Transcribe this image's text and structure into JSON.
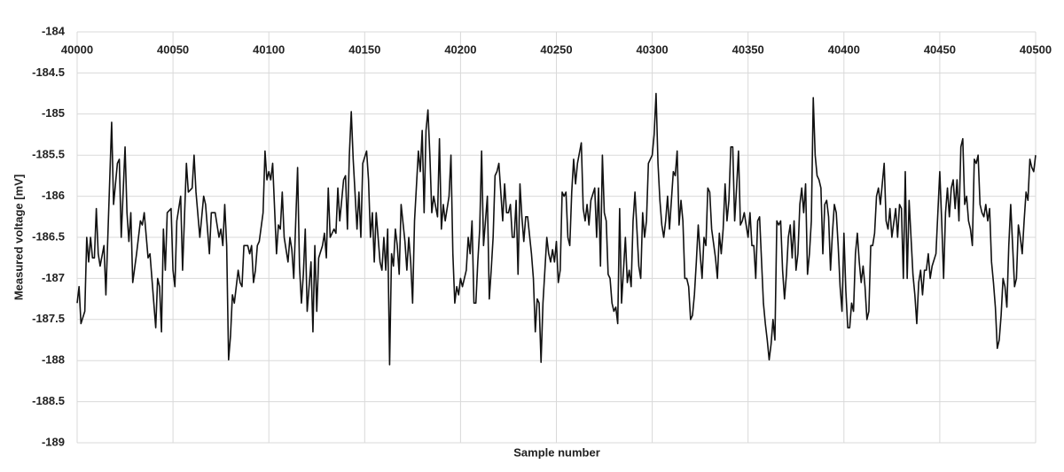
{
  "chart_data": {
    "type": "line",
    "xlabel": "Sample number",
    "ylabel": "Measured voltage [mV]",
    "color": "#111111",
    "grid": true,
    "xlim": [
      40000,
      40500
    ],
    "xticks": [
      40000,
      40050,
      40100,
      40150,
      40200,
      40250,
      40300,
      40350,
      40400,
      40450,
      40500
    ],
    "ylim": [
      -189,
      -184
    ],
    "yticks": [
      -189,
      -188.5,
      -188,
      -187.5,
      -187,
      -186.5,
      -186,
      -185.5,
      -185,
      -184.5,
      -184
    ],
    "x": [
      40000,
      40001,
      40002,
      40004,
      40005,
      40006,
      40007,
      40008,
      40009,
      40010,
      40011,
      40012,
      40014,
      40015,
      40016,
      40018,
      40019,
      40021,
      40022,
      40023,
      40025,
      40026,
      40027,
      40028,
      40029,
      40031,
      40033,
      40034,
      40035,
      40037,
      40038,
      40041,
      40042,
      40043,
      40044,
      40045,
      40046,
      40047,
      40049,
      40050,
      40051,
      40052,
      40054,
      40055,
      40057,
      40058,
      40060,
      40061,
      40062,
      40064,
      40066,
      40067,
      40069,
      40070,
      40072,
      40074,
      40075,
      40076,
      40077,
      40078,
      40079,
      40080,
      40081,
      40082,
      40084,
      40085,
      40086,
      40087,
      40089,
      40090,
      40091,
      40092,
      40093,
      40094,
      40095,
      40097,
      40098,
      40099,
      40100,
      40101,
      40102,
      40104,
      40105,
      40106,
      40107,
      40108,
      40110,
      40111,
      40112,
      40113,
      40115,
      40116,
      40117,
      40118,
      40119,
      40120,
      40122,
      40123,
      40124,
      40125,
      40126,
      40128,
      40129,
      40130,
      40131,
      40132,
      40134,
      40135,
      40136,
      40137,
      40139,
      40140,
      40141,
      40142,
      40143,
      40144,
      40146,
      40147,
      40148,
      40149,
      40151,
      40152,
      40153,
      40154,
      40155,
      40156,
      40158,
      40159,
      40160,
      40161,
      40162,
      40163,
      40164,
      40165,
      40166,
      40167,
      40168,
      40169,
      40171,
      40172,
      40173,
      40174,
      40175,
      40176,
      40178,
      40179,
      40180,
      40181,
      40182,
      40183,
      40184,
      40185,
      40186,
      40188,
      40189,
      40190,
      40191,
      40192,
      40194,
      40195,
      40196,
      40197,
      40198,
      40199,
      40200,
      40201,
      40203,
      40204,
      40205,
      40206,
      40207,
      40208,
      40209,
      40210,
      40211,
      40212,
      40214,
      40215,
      40216,
      40217,
      40218,
      40219,
      40220,
      40222,
      40223,
      40224,
      40225,
      40226,
      40227,
      40228,
      40229,
      40230,
      40231,
      40232,
      40233,
      40234,
      40235,
      40237,
      40238,
      40239,
      40240,
      40241,
      40242,
      40243,
      40244,
      40245,
      40246,
      40247,
      40248,
      40249,
      40250,
      40251,
      40252,
      40253,
      40254,
      40255,
      40256,
      40257,
      40258,
      40259,
      40260,
      40261,
      40263,
      40264,
      40265,
      40266,
      40267,
      40268,
      40270,
      40271,
      40272,
      40273,
      40274,
      40275,
      40276,
      40277,
      40278,
      40279,
      40280,
      40281,
      40282,
      40283,
      40284,
      40286,
      40287,
      40288,
      40289,
      40290,
      40291,
      40293,
      40294,
      40295,
      40296,
      40297,
      40298,
      40299,
      40300,
      40301,
      40302,
      40303,
      40304,
      40305,
      40306,
      40307,
      40308,
      40309,
      40310,
      40311,
      40312,
      40313,
      40314,
      40315,
      40316,
      40317,
      40318,
      40319,
      40320,
      40321,
      40322,
      40323,
      40324,
      40325,
      40326,
      40327,
      40328,
      40329,
      40330,
      40331,
      40333,
      40334,
      40335,
      40336,
      40337,
      40338,
      40339,
      40340,
      40341,
      40342,
      40343,
      40344,
      40345,
      40346,
      40347,
      40348,
      40349,
      40350,
      40351,
      40352,
      40353,
      40354,
      40355,
      40356,
      40358,
      40359,
      40360,
      40361,
      40362,
      40363,
      40364,
      40365,
      40366,
      40367,
      40368,
      40369,
      40370,
      40371,
      40372,
      40373,
      40374,
      40375,
      40376,
      40377,
      40378,
      40379,
      40380,
      40381,
      40382,
      40383,
      40384,
      40385,
      40386,
      40387,
      40388,
      40389,
      40390,
      40391,
      40392,
      40393,
      40394,
      40395,
      40396,
      40397,
      40398,
      40399,
      40400,
      40401,
      40402,
      40403,
      40404,
      40405,
      40406,
      40407,
      40408,
      40409,
      40410,
      40411,
      40412,
      40413,
      40414,
      40415,
      40416,
      40417,
      40418,
      40419,
      40420,
      40421,
      40422,
      40423,
      40424,
      40425,
      40427,
      40428,
      40429,
      40430,
      40431,
      40432,
      40433,
      40434,
      40435,
      40436,
      40437,
      40438,
      40439,
      40440,
      40441,
      40442,
      40443,
      40444,
      40445,
      40446,
      40448,
      40449,
      40450,
      40451,
      40452,
      40453,
      40454,
      40455,
      40456,
      40457,
      40458,
      40459,
      40460,
      40461,
      40462,
      40463,
      40464,
      40465,
      40466,
      40467,
      40468,
      40469,
      40470,
      40471,
      40472,
      40473,
      40474,
      40475,
      40476,
      40477,
      40478,
      40479,
      40480,
      40481,
      40482,
      40483,
      40484,
      40485,
      40486,
      40487,
      40489,
      40490,
      40491,
      40492,
      40493,
      40494,
      40495,
      40496,
      40497,
      40498,
      40499,
      40500
    ],
    "values": [
      -187.3,
      -187.1,
      -187.55,
      -187.4,
      -186.5,
      -186.8,
      -186.5,
      -186.75,
      -186.75,
      -186.15,
      -186.7,
      -186.85,
      -186.6,
      -187.2,
      -186.5,
      -185.1,
      -186.1,
      -185.6,
      -185.55,
      -186.5,
      -185.4,
      -186.2,
      -186.55,
      -186.2,
      -187.05,
      -186.7,
      -186.3,
      -186.35,
      -186.2,
      -186.75,
      -186.7,
      -187.6,
      -187,
      -187.1,
      -187.65,
      -186.4,
      -186.9,
      -186.2,
      -186.15,
      -186.9,
      -187.1,
      -186.3,
      -186,
      -186.9,
      -185.6,
      -185.95,
      -185.9,
      -185.5,
      -185.95,
      -186.5,
      -186,
      -186.1,
      -186.7,
      -186.2,
      -186.2,
      -186.5,
      -186.4,
      -186.6,
      -186.1,
      -186.6,
      -187.99,
      -187.7,
      -187.2,
      -187.3,
      -186.9,
      -187.05,
      -187.1,
      -186.6,
      -186.6,
      -186.7,
      -186.6,
      -187.05,
      -186.9,
      -186.6,
      -186.55,
      -186.2,
      -185.45,
      -185.8,
      -185.7,
      -185.8,
      -185.6,
      -186.7,
      -186.35,
      -186.4,
      -185.95,
      -186.5,
      -186.8,
      -186.5,
      -186.65,
      -187,
      -185.65,
      -186.85,
      -187.3,
      -186.95,
      -186.4,
      -187.4,
      -186.8,
      -187.65,
      -186.6,
      -187.4,
      -186.75,
      -186.6,
      -186.45,
      -186.75,
      -185.9,
      -186.5,
      -186.4,
      -186.45,
      -185.9,
      -186.3,
      -185.8,
      -185.75,
      -186.4,
      -185.5,
      -184.97,
      -185.55,
      -186.4,
      -185.95,
      -186.5,
      -185.6,
      -185.45,
      -185.8,
      -186.5,
      -186.2,
      -186.8,
      -186.2,
      -186.8,
      -186.9,
      -186.5,
      -186.9,
      -186.4,
      -188.05,
      -186.7,
      -186.85,
      -186.4,
      -186.6,
      -186.95,
      -186.1,
      -186.55,
      -186.9,
      -186.5,
      -186.8,
      -187.3,
      -186.3,
      -185.45,
      -185.7,
      -185.2,
      -186.2,
      -185.2,
      -184.95,
      -185.5,
      -186.2,
      -186,
      -186.25,
      -185.3,
      -186.4,
      -186.1,
      -186.3,
      -186,
      -185.5,
      -186.7,
      -187.3,
      -187.1,
      -187.2,
      -187,
      -187.1,
      -186.9,
      -186.5,
      -186.7,
      -186.3,
      -187.3,
      -187.3,
      -186.8,
      -186.4,
      -185.45,
      -186.6,
      -186,
      -187.25,
      -186.9,
      -186.5,
      -185.75,
      -185.7,
      -185.6,
      -186.3,
      -185.85,
      -186.2,
      -186.2,
      -186.1,
      -186.5,
      -186.5,
      -186.05,
      -186.95,
      -185.85,
      -186.25,
      -186.55,
      -186.25,
      -186.25,
      -186.7,
      -187,
      -187.65,
      -187.25,
      -187.3,
      -188.02,
      -187.3,
      -186.9,
      -186.5,
      -186.7,
      -186.8,
      -186.65,
      -186.8,
      -186.55,
      -187.05,
      -186.9,
      -185.95,
      -186,
      -185.95,
      -186.5,
      -186.6,
      -185.95,
      -185.55,
      -185.85,
      -185.6,
      -185.35,
      -186.15,
      -186.3,
      -186.1,
      -186.35,
      -186.05,
      -185.9,
      -186.5,
      -185.9,
      -186.85,
      -185.5,
      -186.2,
      -186.3,
      -186.95,
      -187,
      -187.3,
      -187.4,
      -187.35,
      -187.55,
      -186.15,
      -187.3,
      -186.5,
      -187.05,
      -186.9,
      -187.1,
      -186.3,
      -185.95,
      -186.85,
      -187,
      -186.2,
      -186.5,
      -186.3,
      -185.6,
      -185.55,
      -185.5,
      -185.25,
      -184.75,
      -185.6,
      -186.05,
      -186.35,
      -186.5,
      -186.3,
      -186,
      -186.4,
      -186.05,
      -185.7,
      -185.75,
      -185.45,
      -186.35,
      -186.05,
      -186.3,
      -187,
      -187,
      -187.1,
      -187.5,
      -187.45,
      -187.2,
      -186.8,
      -186.35,
      -186.7,
      -187,
      -186.5,
      -186.6,
      -185.9,
      -185.95,
      -186.4,
      -186.75,
      -187,
      -186.45,
      -186.7,
      -186.4,
      -185.85,
      -186.3,
      -186.05,
      -185.4,
      -185.4,
      -186.3,
      -185.9,
      -185.45,
      -186.35,
      -186.3,
      -186.2,
      -186.35,
      -186.5,
      -186.2,
      -186.6,
      -186.6,
      -187,
      -186.3,
      -186.25,
      -187.3,
      -187.55,
      -187.75,
      -187.99,
      -187.8,
      -187.5,
      -187.75,
      -186.3,
      -186.35,
      -186.3,
      -186.9,
      -187.25,
      -186.95,
      -186.5,
      -186.35,
      -186.75,
      -186.3,
      -186.9,
      -186.7,
      -186.1,
      -185.9,
      -186.2,
      -185.85,
      -186.95,
      -186.7,
      -186.3,
      -184.8,
      -185.5,
      -185.75,
      -185.8,
      -185.9,
      -186.7,
      -186.1,
      -186.05,
      -186.25,
      -186.9,
      -186.45,
      -186.1,
      -186.2,
      -186.6,
      -187.1,
      -187.4,
      -186.45,
      -187.15,
      -187.6,
      -187.6,
      -187.3,
      -187.4,
      -186.7,
      -186.45,
      -186.8,
      -187.05,
      -186.85,
      -187.1,
      -187.5,
      -187.4,
      -186.6,
      -186.6,
      -186.45,
      -186,
      -185.9,
      -186.1,
      -185.85,
      -185.6,
      -186.3,
      -186.4,
      -186.15,
      -186.5,
      -186.15,
      -186.5,
      -186.1,
      -186.15,
      -187,
      -185.7,
      -187,
      -186.05,
      -186.5,
      -186.95,
      -187.2,
      -187.55,
      -187.05,
      -186.9,
      -187.2,
      -186.9,
      -186.9,
      -186.7,
      -187,
      -186.85,
      -186.7,
      -186.2,
      -185.7,
      -186.3,
      -187,
      -186.2,
      -185.9,
      -186.25,
      -185.9,
      -185.8,
      -186.15,
      -185.8,
      -186.3,
      -185.4,
      -185.3,
      -186.1,
      -186,
      -186.3,
      -186.4,
      -186.6,
      -185.55,
      -185.6,
      -185.5,
      -186.1,
      -186.2,
      -186.25,
      -186.1,
      -186.3,
      -186.15,
      -186.8,
      -187.05,
      -187.35,
      -187.85,
      -187.75,
      -187.45,
      -187,
      -187.1,
      -187.35,
      -186.6,
      -186.1,
      -187.1,
      -187,
      -186.35,
      -186.5,
      -186.7,
      -186.3,
      -185.95,
      -186.05,
      -185.55,
      -185.65,
      -185.7,
      -185.5
    ]
  }
}
